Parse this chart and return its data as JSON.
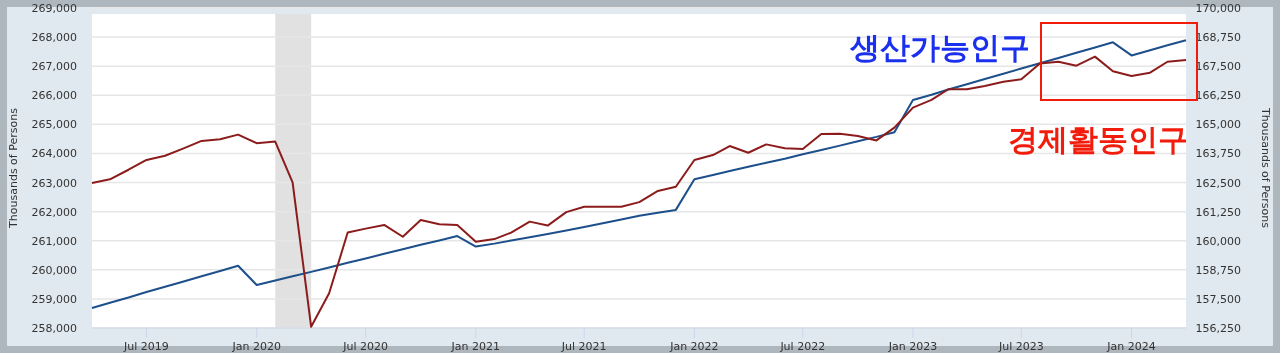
{
  "chart_data": {
    "type": "line",
    "x": [
      "2019-04",
      "2019-05",
      "2019-06",
      "2019-07",
      "2019-08",
      "2019-09",
      "2019-10",
      "2019-11",
      "2019-12",
      "2020-01",
      "2020-02",
      "2020-03",
      "2020-04",
      "2020-05",
      "2020-06",
      "2020-07",
      "2020-08",
      "2020-09",
      "2020-10",
      "2020-11",
      "2020-12",
      "2021-01",
      "2021-02",
      "2021-03",
      "2021-04",
      "2021-05",
      "2021-06",
      "2021-07",
      "2021-08",
      "2021-09",
      "2021-10",
      "2021-11",
      "2021-12",
      "2022-01",
      "2022-02",
      "2022-03",
      "2022-04",
      "2022-05",
      "2022-06",
      "2022-07",
      "2022-08",
      "2022-09",
      "2022-10",
      "2022-11",
      "2022-12",
      "2023-01",
      "2023-02",
      "2023-03",
      "2023-04",
      "2023-05",
      "2023-06",
      "2023-07",
      "2023-08",
      "2023-09",
      "2023-10",
      "2023-11",
      "2023-12",
      "2024-01",
      "2024-02",
      "2024-03",
      "2024-04"
    ],
    "series": [
      {
        "name": "생산가능인구",
        "color": "#1d4f8b",
        "values": [
          258690,
          258870,
          259050,
          259240,
          259420,
          259600,
          259780,
          259960,
          260140,
          259480,
          259630,
          259780,
          259930,
          260080,
          260240,
          260390,
          260550,
          260710,
          260860,
          261010,
          261160,
          260800,
          260900,
          261010,
          261120,
          261230,
          261350,
          261470,
          261600,
          261730,
          261860,
          261960,
          262060,
          263110,
          263260,
          263400,
          263540,
          263680,
          263820,
          263970,
          264120,
          264270,
          264420,
          264570,
          264730,
          265840,
          266020,
          266200,
          266380,
          266560,
          266740,
          266920,
          267100,
          267280,
          267460,
          267640,
          267820,
          267370,
          267550,
          267720,
          267890
        ]
      },
      {
        "name": "경제활동인구",
        "color": "#8c1c1c",
        "axis": "y2",
        "values": [
          162480,
          162640,
          163050,
          163470,
          163650,
          163970,
          164290,
          164360,
          164560,
          164190,
          164260,
          162510,
          156300,
          157740,
          160350,
          160520,
          160680,
          160170,
          160890,
          160710,
          160680,
          159960,
          160070,
          160350,
          160820,
          160650,
          161230,
          161460,
          161460,
          161460,
          161660,
          162140,
          162320,
          163470,
          163680,
          164070,
          163780,
          164140,
          163970,
          163940,
          164590,
          164600,
          164500,
          164310,
          164860,
          165720,
          166050,
          166510,
          166510,
          166650,
          166830,
          166940,
          167620,
          167690,
          167520,
          167910,
          167280,
          167080,
          167220,
          167690,
          167770
        ]
      }
    ],
    "xlim": [
      "2019-04",
      "2024-04"
    ],
    "xticks": [
      {
        "value": "2019-07",
        "label": "Jul 2019"
      },
      {
        "value": "2020-01",
        "label": "Jan 2020"
      },
      {
        "value": "2020-07",
        "label": "Jul 2020"
      },
      {
        "value": "2021-01",
        "label": "Jan 2021"
      },
      {
        "value": "2021-07",
        "label": "Jul 2021"
      },
      {
        "value": "2022-01",
        "label": "Jan 2022"
      },
      {
        "value": "2022-07",
        "label": "Jul 2022"
      },
      {
        "value": "2023-01",
        "label": "Jan 2023"
      },
      {
        "value": "2023-07",
        "label": "Jul 2023"
      },
      {
        "value": "2024-01",
        "label": "Jan 2024"
      }
    ],
    "ylim": [
      258000,
      269000
    ],
    "yticks": [
      {
        "value": 258000,
        "label": "258,000"
      },
      {
        "value": 259000,
        "label": "259,000"
      },
      {
        "value": 260000,
        "label": "260,000"
      },
      {
        "value": 261000,
        "label": "261,000"
      },
      {
        "value": 262000,
        "label": "262,000"
      },
      {
        "value": 263000,
        "label": "263,000"
      },
      {
        "value": 264000,
        "label": "264,000"
      },
      {
        "value": 265000,
        "label": "265,000"
      },
      {
        "value": 266000,
        "label": "266,000"
      },
      {
        "value": 267000,
        "label": "267,000"
      },
      {
        "value": 268000,
        "label": "268,000"
      },
      {
        "value": 269000,
        "label": "269,000"
      }
    ],
    "y2lim": [
      156250,
      170000
    ],
    "y2ticks": [
      {
        "value": 156250,
        "label": "156,250"
      },
      {
        "value": 157500,
        "label": "157,500"
      },
      {
        "value": 158750,
        "label": "158,750"
      },
      {
        "value": 160000,
        "label": "160,000"
      },
      {
        "value": 161250,
        "label": "161,250"
      },
      {
        "value": 162500,
        "label": "162,500"
      },
      {
        "value": 163750,
        "label": "163,750"
      },
      {
        "value": 165000,
        "label": "165,000"
      },
      {
        "value": 166250,
        "label": "166,250"
      },
      {
        "value": 167500,
        "label": "167,500"
      },
      {
        "value": 168750,
        "label": "168,750"
      },
      {
        "value": 170000,
        "label": "170,000"
      }
    ],
    "ylabel": "Thousands of Persons",
    "y2label": "Thousands of Persons",
    "bands": [
      {
        "axis": "x",
        "from": "2020-02",
        "to": "2020-04",
        "color": "#e1e1e1"
      }
    ],
    "grid": "y",
    "line_style": "solid",
    "marker": "none"
  }
}
